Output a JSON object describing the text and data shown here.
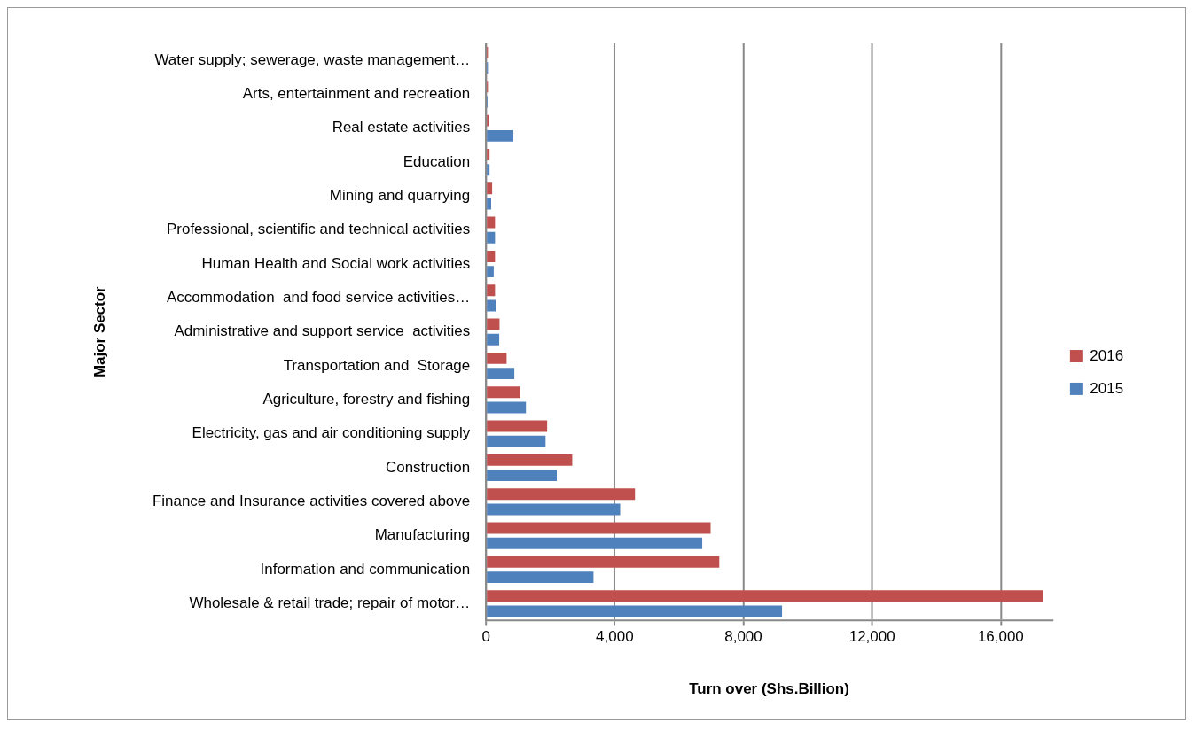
{
  "chart_data": {
    "type": "bar",
    "orientation": "horizontal",
    "xlabel": "Turn over (Shs.Billion)",
    "ylabel": "Major Sector",
    "categories": [
      "Water supply; sewerage, waste management…",
      "Arts, entertainment and recreation",
      "Real estate activities",
      "Education",
      "Mining and quarrying",
      "Professional, scientific and technical activities",
      "Human Health and Social work activities",
      "Accommodation  and food service activities…",
      "Administrative and support service  activities",
      "Transportation and  Storage",
      "Agriculture, forestry and fishing",
      "Electricity, gas and air conditioning supply",
      "Construction",
      "Finance and Insurance activities covered above",
      "Manufacturing",
      "Information and communication",
      "Wholesale & retail trade; repair of motor…"
    ],
    "series": [
      {
        "name": "2016",
        "color": "#c0504d",
        "values": [
          60,
          60,
          100,
          110,
          190,
          280,
          280,
          280,
          420,
          640,
          1060,
          1900,
          2680,
          4630,
          6980,
          7250,
          17300
        ]
      },
      {
        "name": "2015",
        "color": "#4f81bd",
        "values": [
          60,
          50,
          850,
          110,
          160,
          280,
          240,
          300,
          410,
          880,
          1240,
          1850,
          2200,
          4170,
          6720,
          3340,
          9200
        ]
      }
    ],
    "xlim": [
      0,
      17600
    ],
    "xticks": [
      0,
      {
        "value": 4000,
        "label": "4,000"
      },
      {
        "value": 8000,
        "label": "8,000"
      },
      {
        "value": 12000,
        "label": "12,000"
      },
      {
        "value": 16000,
        "label": "16,000"
      }
    ],
    "grid": "x",
    "legend": "right"
  }
}
